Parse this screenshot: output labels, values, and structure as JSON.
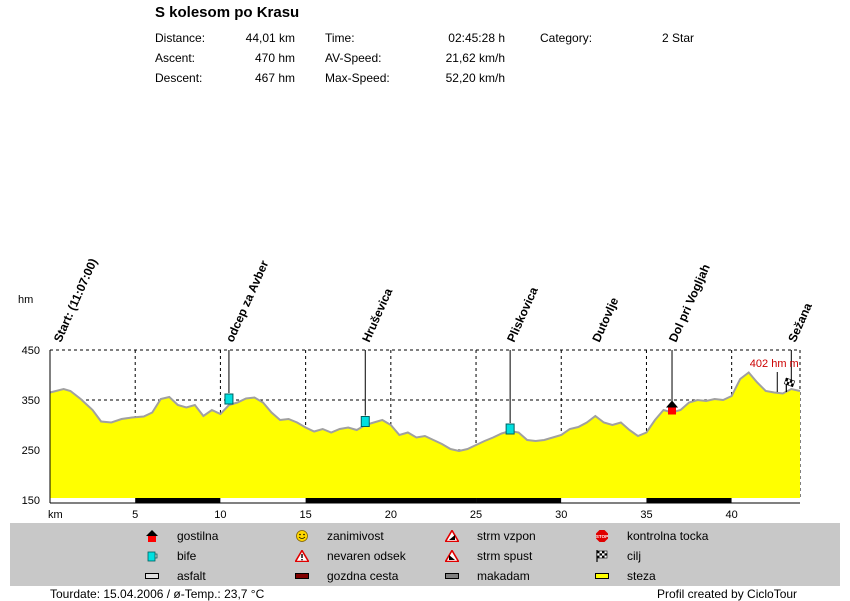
{
  "header": {
    "title": "S kolesom po Krasu",
    "stats": [
      {
        "label": "Distance:",
        "value": "44,01 km"
      },
      {
        "label": "Ascent:",
        "value": "470 hm"
      },
      {
        "label": "Descent:",
        "value": "467 hm"
      },
      {
        "label": "Time:",
        "value": "02:45:28 h"
      },
      {
        "label": "AV-Speed:",
        "value": "21,62 km/h"
      },
      {
        "label": "Max-Speed:",
        "value": "52,20 km/h"
      },
      {
        "label": "Category:",
        "value": "2 Star"
      }
    ]
  },
  "chart_data": {
    "type": "area",
    "xlabel": "km",
    "ylabel": "hm",
    "xlim": [
      0,
      44.01
    ],
    "ylim": [
      150,
      450
    ],
    "x_ticks": [
      5,
      10,
      15,
      20,
      25,
      30,
      35,
      40
    ],
    "y_ticks": [
      150,
      250,
      350,
      450
    ],
    "grid": true,
    "fill_color": "#ffff00",
    "line_color": "#a0a0a0",
    "x": [
      0,
      0.8,
      1.2,
      1.8,
      2.5,
      3.0,
      3.6,
      4.2,
      4.8,
      5.5,
      6.0,
      6.5,
      7.0,
      7.5,
      8.0,
      8.5,
      9.0,
      9.5,
      10.0,
      10.5,
      11.0,
      11.5,
      12.0,
      12.5,
      13.0,
      13.5,
      14.0,
      14.5,
      15.0,
      15.5,
      16.0,
      16.5,
      17.0,
      17.5,
      18.0,
      18.5,
      19.0,
      19.5,
      20.0,
      20.5,
      21.0,
      21.5,
      22.0,
      22.5,
      23.0,
      23.5,
      24.0,
      24.5,
      25.0,
      25.5,
      26.0,
      26.5,
      27.0,
      27.5,
      28.0,
      28.5,
      29.0,
      29.5,
      30.0,
      30.5,
      31.0,
      31.5,
      32.0,
      32.5,
      33.0,
      33.5,
      34.0,
      34.5,
      35.0,
      35.5,
      36.0,
      36.5,
      37.0,
      37.5,
      38.0,
      38.5,
      39.0,
      39.5,
      40.0,
      40.5,
      41.0,
      41.5,
      42.0,
      42.5,
      43.0,
      43.5,
      44.01
    ],
    "values": [
      365,
      372,
      368,
      352,
      330,
      307,
      305,
      312,
      315,
      317,
      325,
      352,
      356,
      340,
      335,
      340,
      318,
      330,
      322,
      340,
      345,
      353,
      355,
      345,
      325,
      310,
      312,
      305,
      295,
      287,
      292,
      285,
      292,
      295,
      290,
      300,
      305,
      310,
      300,
      280,
      285,
      275,
      278,
      270,
      262,
      252,
      248,
      252,
      260,
      268,
      275,
      283,
      288,
      285,
      270,
      268,
      270,
      275,
      280,
      292,
      296,
      305,
      318,
      305,
      300,
      305,
      290,
      278,
      285,
      310,
      330,
      325,
      330,
      345,
      350,
      348,
      352,
      350,
      358,
      392,
      405,
      385,
      368,
      365,
      363,
      372,
      368
    ],
    "annotations": [
      {
        "label": "Start: (11:07:00)",
        "km": 0.4,
        "icon": null,
        "alt": null
      },
      {
        "label": "odcep za Avber",
        "km": 10.5,
        "icon": "bife",
        "alt": 352
      },
      {
        "label": "Hruševica",
        "km": 18.5,
        "icon": "bife",
        "alt": 307
      },
      {
        "label": "Pliskovica",
        "km": 27.0,
        "icon": "bife",
        "alt": 292
      },
      {
        "label": "Dutovlje",
        "km": 32.0,
        "icon": null,
        "alt": null
      },
      {
        "label": "Dol pri Vogljah",
        "km": 36.5,
        "icon": "gostilna",
        "alt": 335
      },
      {
        "label": "Sežana",
        "km": 43.5,
        "icon": "cilj",
        "alt": 378
      }
    ],
    "max_label": "402 hm m",
    "max_km": 42.5,
    "surface": [
      {
        "from": 0,
        "to": 5,
        "type": "asfalt"
      },
      {
        "from": 5,
        "to": 10,
        "type": "gozdna cesta"
      },
      {
        "from": 10,
        "to": 15,
        "type": "asfalt"
      },
      {
        "from": 15,
        "to": 25,
        "type": "gozdna cesta"
      },
      {
        "from": 25,
        "to": 30,
        "type": "gozdna cesta"
      },
      {
        "from": 30,
        "to": 35,
        "type": "asfalt"
      },
      {
        "from": 35,
        "to": 40,
        "type": "gozdna cesta"
      },
      {
        "from": 40,
        "to": 44.01,
        "type": "asfalt"
      }
    ]
  },
  "legend": {
    "items": [
      {
        "label": "gostilna",
        "icon": "house-icon",
        "color": "#ff0000"
      },
      {
        "label": "zanimivost",
        "icon": "smiley-icon",
        "color": "#ffd700"
      },
      {
        "label": "strm vzpon",
        "icon": "steep-climb-icon",
        "color": "#ff0000"
      },
      {
        "label": "kontrolna tocka",
        "icon": "stop-sign-icon",
        "color": "#ff0000"
      },
      {
        "label": "bife",
        "icon": "mug-icon",
        "color": "#00e0e0"
      },
      {
        "label": "nevaren odsek",
        "icon": "warning-icon",
        "color": "#ff0000"
      },
      {
        "label": "strm spust",
        "icon": "steep-descent-icon",
        "color": "#ff0000"
      },
      {
        "label": "cilj",
        "icon": "checkered-flag-icon",
        "color": "#000000"
      },
      {
        "label": "asfalt",
        "icon": "asphalt-swatch-icon",
        "color": "#e0e0e0"
      },
      {
        "label": "gozdna cesta",
        "icon": "forest-road-swatch-icon",
        "color": "#800000"
      },
      {
        "label": "makadam",
        "icon": "gravel-swatch-icon",
        "color": "#808080"
      },
      {
        "label": "steza",
        "icon": "trail-swatch-icon",
        "color": "#ffff00"
      }
    ]
  },
  "footer": {
    "tourdate": "Tourdate: 15.04.2006  /  ø-Temp.: 23,7 °C",
    "credit": "Profil created by CicloTour"
  }
}
